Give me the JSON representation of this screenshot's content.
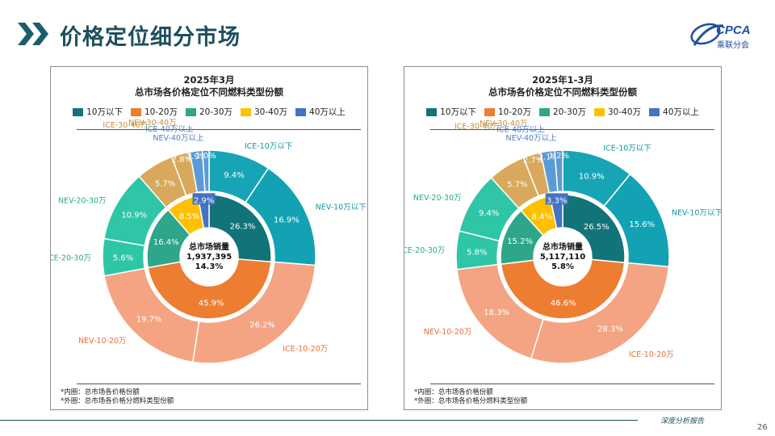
{
  "page": {
    "title": "价格定位细分市场",
    "logo_text": "CPCA",
    "logo_sub": "乘联分会",
    "footer_tag": "深度分析报告",
    "page_number": "26"
  },
  "colors": {
    "inner": [
      "#127378",
      "#ed7d31",
      "#2ea689",
      "#ffc000",
      "#4472c4"
    ],
    "outer": [
      "#17a5b5",
      "#12a2b3",
      "#f4a483",
      "#f4a483",
      "#2fc6a8",
      "#2fc6a8",
      "#d8a95d",
      "#d8a95d",
      "#5b9bd5",
      "#5b9bd5"
    ],
    "outer_label": [
      "#1596a6",
      "#1596a6",
      "#e56f3b",
      "#e56f3b",
      "#2aa98e",
      "#2aa98e",
      "#c68f38",
      "#c68f38",
      "#5181bf",
      "#5181bf"
    ]
  },
  "legend": [
    "10万以下",
    "10-20万",
    "20-30万",
    "30-40万",
    "40万以上"
  ],
  "notes": [
    "*内圈：总市场各价格份额",
    "*外圈：总市场各价格分燃料类型份额"
  ],
  "chart_data": [
    {
      "type": "pie",
      "title_line1": "2025年3月",
      "title_line2": "总市场各价格定位不同燃料类型份额",
      "center_label": "总市场销量",
      "center_value": "1,937,395",
      "center_growth": "14.3%",
      "inner": {
        "categories": [
          "10万以下",
          "10-20万",
          "20-30万",
          "30-40万",
          "40万以上"
        ],
        "values": [
          26.3,
          45.9,
          16.4,
          8.5,
          2.9
        ],
        "labels": [
          "26.3%",
          "45.9%",
          "16.4%",
          "8.5%",
          "2.9%"
        ]
      },
      "outer": {
        "categories": [
          "ICE-10万以下",
          "NEV-10万以下",
          "ICE-10-20万",
          "NEV-10-20万",
          "ICE-20-30万",
          "NEV-20-30万",
          "ICE-30-40万",
          "NEV-30-40万",
          "ICE-40万以上",
          "NEV-40万以上"
        ],
        "values": [
          9.4,
          16.9,
          26.2,
          19.7,
          5.6,
          10.9,
          5.7,
          2.8,
          1.9,
          1.0
        ],
        "labels": [
          "9.4%",
          "16.9%",
          "26.2%",
          "19.7%",
          "5.6%",
          "10.9%",
          "5.7%",
          "2.8%",
          "1.9%",
          "1.0%"
        ]
      }
    },
    {
      "type": "pie",
      "title_line1": "2025年1-3月",
      "title_line2": "总市场各价格定位不同燃料类型份额",
      "center_label": "总市场销量",
      "center_value": "5,117,110",
      "center_growth": "5.8%",
      "inner": {
        "categories": [
          "10万以下",
          "10-20万",
          "20-30万",
          "30-40万",
          "40万以上"
        ],
        "values": [
          26.5,
          46.6,
          15.2,
          8.4,
          3.3
        ],
        "labels": [
          "26.5%",
          "46.6%",
          "15.2%",
          "8.4%",
          "3.3%"
        ]
      },
      "outer": {
        "categories": [
          "ICE-10万以下",
          "NEV-10万以下",
          "ICE-10-20万",
          "NEV-10-20万",
          "ICE-20-30万",
          "NEV-20-30万",
          "ICE-30-40万",
          "NEV-30-40万",
          "ICE-40万以上",
          "NEV-40万以上"
        ],
        "values": [
          10.9,
          15.6,
          28.3,
          18.3,
          5.8,
          9.4,
          5.7,
          2.7,
          2.1,
          1.2
        ],
        "labels": [
          "10.9%",
          "15.6%",
          "28.3%",
          "18.3%",
          "5.8%",
          "9.4%",
          "5.7%",
          "2.7%",
          "2.1%",
          "1.2%"
        ]
      }
    }
  ]
}
